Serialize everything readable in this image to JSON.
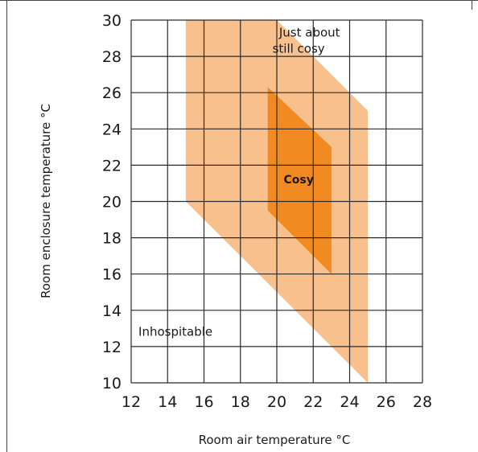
{
  "chart_data": {
    "type": "area",
    "title": "",
    "xlabel": "Room air temperature °C",
    "ylabel": "Room enclosure temperature °C",
    "xlim": [
      12,
      28
    ],
    "ylim": [
      10,
      30
    ],
    "xticks": [
      12,
      14,
      16,
      18,
      20,
      22,
      24,
      26,
      28
    ],
    "yticks": [
      10,
      12,
      14,
      16,
      18,
      20,
      22,
      24,
      26,
      28,
      30
    ],
    "grid": true,
    "regions": [
      {
        "name": "Just about still cosy",
        "color": "#f8c08c",
        "points": [
          [
            15,
            30
          ],
          [
            20,
            30
          ],
          [
            25,
            25
          ],
          [
            25,
            10
          ],
          [
            15,
            20
          ]
        ]
      },
      {
        "name": "Cosy",
        "color": "#f28a22",
        "points": [
          [
            19.5,
            26.3
          ],
          [
            23,
            23
          ],
          [
            23,
            16
          ],
          [
            19.5,
            19.5
          ]
        ]
      }
    ],
    "annotations": [
      {
        "text": "Just about",
        "x": 21.8,
        "y": 29.1,
        "style": "normal"
      },
      {
        "text": "still cosy",
        "x": 21.2,
        "y": 28.2,
        "style": "normal"
      },
      {
        "text": "Cosy",
        "x": 21.2,
        "y": 21.0,
        "style": "bold"
      },
      {
        "text": "Inhospitable",
        "x": 12.4,
        "y": 12.6,
        "style": "normal"
      }
    ]
  }
}
